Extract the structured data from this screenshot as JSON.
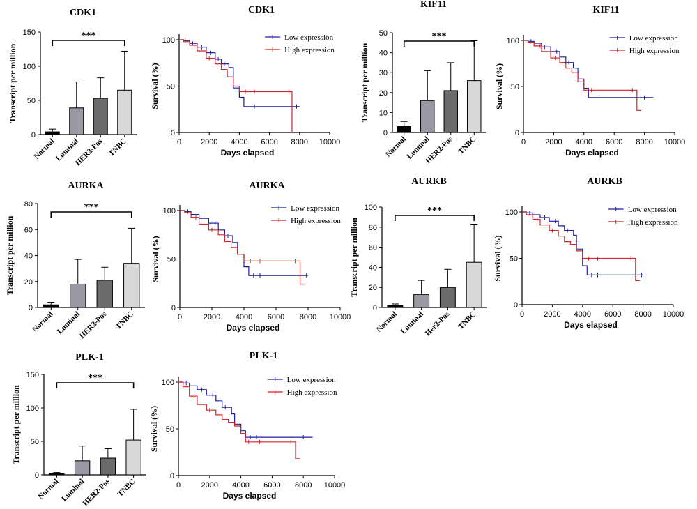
{
  "chart_data": [
    {
      "id": "cdk1-bar",
      "type": "bar",
      "title": "CDK1",
      "ylabel": "Transcript per million",
      "xlabel": "",
      "categories": [
        "Normal",
        "Luminal",
        "HER2-Pos",
        "TNBC"
      ],
      "values": [
        4,
        39,
        53,
        65
      ],
      "errors": [
        4,
        38,
        30,
        57
      ],
      "bar_colors": [
        "#000000",
        "#9a98a3",
        "#6b6b6b",
        "#d8d8d8"
      ],
      "ylim": [
        0,
        150
      ],
      "yticks": [
        0,
        50,
        100,
        150
      ],
      "significance": "***",
      "grid": false
    },
    {
      "id": "cdk1-km",
      "type": "line",
      "title": "CDK1",
      "xlabel": "Days elapsed",
      "ylabel": "Survival (%)",
      "xlim": [
        0,
        10000
      ],
      "ylim": [
        0,
        100
      ],
      "xticks": [
        0,
        2000,
        4000,
        6000,
        8000,
        10000
      ],
      "yticks": [
        0,
        50,
        100
      ],
      "legend_position": "top-right",
      "series": [
        {
          "name": "Low expression",
          "color": "#1f1fa0",
          "x": [
            0,
            300,
            700,
            1200,
            1800,
            2400,
            2800,
            3300,
            3600,
            4000,
            4300,
            8000
          ],
          "y": [
            100,
            99,
            96,
            92,
            86,
            79,
            74,
            70,
            48,
            38,
            28,
            28
          ],
          "censor_x": [
            400,
            900,
            1500,
            2100,
            2600,
            3000,
            5000,
            7800
          ]
        },
        {
          "name": "High expression",
          "color": "#d0262a",
          "x": [
            0,
            300,
            700,
            1200,
            1800,
            2400,
            2800,
            3200,
            3600,
            4000,
            7400,
            7500
          ],
          "y": [
            100,
            98,
            94,
            88,
            80,
            74,
            68,
            60,
            50,
            44,
            44,
            0
          ],
          "censor_x": [
            1000,
            2000,
            4400,
            5000,
            7300
          ]
        }
      ]
    },
    {
      "id": "kif11-bar",
      "type": "bar",
      "title": "KIF11",
      "ylabel": "Transcript per million",
      "xlabel": "",
      "categories": [
        "Normal",
        "Luminal",
        "HER2-Pos",
        "TNBC"
      ],
      "values": [
        3,
        16,
        21,
        26
      ],
      "errors": [
        2.5,
        15,
        14,
        20
      ],
      "bar_colors": [
        "#000000",
        "#9a98a3",
        "#6b6b6b",
        "#d8d8d8"
      ],
      "ylim": [
        0,
        50
      ],
      "yticks": [
        0,
        10,
        20,
        30,
        40,
        50
      ],
      "significance": "***",
      "grid": false
    },
    {
      "id": "kif11-km",
      "type": "line",
      "title": "KIF11",
      "xlabel": "Days elapsed",
      "ylabel": "Survival (%)",
      "xlim": [
        0,
        10000
      ],
      "ylim": [
        0,
        100
      ],
      "xticks": [
        0,
        2000,
        4000,
        6000,
        8000,
        10000
      ],
      "yticks": [
        0,
        50,
        100
      ],
      "legend_position": "top-right",
      "series": [
        {
          "name": "Low expression",
          "color": "#1f1fa0",
          "x": [
            0,
            300,
            700,
            1200,
            1800,
            2400,
            2800,
            3300,
            3600,
            4000,
            4300,
            8600
          ],
          "y": [
            100,
            99,
            97,
            93,
            88,
            82,
            76,
            70,
            58,
            48,
            38,
            38
          ],
          "censor_x": [
            500,
            1400,
            2200,
            3000,
            5000,
            8000
          ]
        },
        {
          "name": "High expression",
          "color": "#d0262a",
          "x": [
            0,
            300,
            700,
            1200,
            1800,
            2400,
            2800,
            3200,
            3600,
            4000,
            7400,
            7500,
            7800
          ],
          "y": [
            100,
            98,
            94,
            88,
            81,
            76,
            70,
            65,
            55,
            46,
            46,
            24,
            24
          ],
          "censor_x": [
            1100,
            2100,
            4500,
            7200
          ]
        }
      ]
    },
    {
      "id": "aurka-bar",
      "type": "bar",
      "title": "AURKA",
      "ylabel": "Transcript per million",
      "xlabel": "",
      "categories": [
        "Normal",
        "Luminal",
        "HER2-Pos",
        "TNBC"
      ],
      "values": [
        2,
        18,
        21,
        34
      ],
      "errors": [
        2,
        19,
        10,
        27
      ],
      "bar_colors": [
        "#000000",
        "#9a98a3",
        "#6b6b6b",
        "#d8d8d8"
      ],
      "ylim": [
        0,
        80
      ],
      "yticks": [
        0,
        20,
        40,
        60,
        80
      ],
      "significance": "***",
      "grid": false
    },
    {
      "id": "aurka-km",
      "type": "line",
      "title": "AURKA",
      "xlabel": "Days elapsed",
      "ylabel": "Survival (%)",
      "xlim": [
        0,
        10000
      ],
      "ylim": [
        0,
        100
      ],
      "xticks": [
        0,
        2000,
        4000,
        6000,
        8000,
        10000
      ],
      "yticks": [
        0,
        50,
        100
      ],
      "legend_position": "top-right",
      "series": [
        {
          "name": "Low expression",
          "color": "#1f1fa0",
          "x": [
            0,
            300,
            700,
            1200,
            1800,
            2400,
            2800,
            3300,
            3600,
            4000,
            4300,
            8000
          ],
          "y": [
            100,
            99,
            96,
            92,
            87,
            80,
            74,
            67,
            55,
            42,
            33,
            33
          ],
          "censor_x": [
            500,
            1500,
            2200,
            3000,
            4600,
            5000,
            7900
          ]
        },
        {
          "name": "High expression",
          "color": "#d0262a",
          "x": [
            0,
            300,
            700,
            1200,
            1800,
            2400,
            2800,
            3200,
            3600,
            4000,
            7400,
            7500,
            7800
          ],
          "y": [
            100,
            98,
            93,
            86,
            80,
            75,
            68,
            62,
            55,
            48,
            48,
            24,
            24
          ],
          "censor_x": [
            1000,
            2000,
            4400,
            5000,
            7200
          ]
        }
      ]
    },
    {
      "id": "aurkb-bar",
      "type": "bar",
      "title": "AURKB",
      "ylabel": "Transcript per million",
      "xlabel": "",
      "categories": [
        "Normal",
        "Luminal",
        "Her2-Pos",
        "TNBC"
      ],
      "values": [
        2,
        13,
        20,
        45
      ],
      "errors": [
        1.5,
        14,
        18,
        38
      ],
      "bar_colors": [
        "#000000",
        "#9a98a3",
        "#6b6b6b",
        "#d8d8d8"
      ],
      "ylim": [
        0,
        100
      ],
      "yticks": [
        0,
        20,
        40,
        60,
        80,
        100
      ],
      "significance": "***",
      "grid": false
    },
    {
      "id": "aurkb-km",
      "type": "line",
      "title": "AURKB",
      "xlabel": "Days elapsed",
      "ylabel": "Survival (%)",
      "xlim": [
        0,
        10000
      ],
      "ylim": [
        0,
        100
      ],
      "xticks": [
        0,
        2000,
        4000,
        6000,
        8000,
        10000
      ],
      "yticks": [
        0,
        50,
        100
      ],
      "legend_position": "top-right",
      "series": [
        {
          "name": "Low expression",
          "color": "#1f1fa0",
          "x": [
            0,
            300,
            700,
            1200,
            1800,
            2400,
            2800,
            3400,
            3600,
            4000,
            4300,
            8000
          ],
          "y": [
            100,
            99,
            97,
            94,
            90,
            85,
            80,
            75,
            60,
            42,
            32,
            32
          ],
          "censor_x": [
            500,
            1500,
            2200,
            3000,
            4600,
            5000,
            7900
          ]
        },
        {
          "name": "High expression",
          "color": "#d0262a",
          "x": [
            0,
            300,
            700,
            1200,
            1800,
            2400,
            2800,
            3200,
            3600,
            4000,
            7400,
            7500,
            7800
          ],
          "y": [
            100,
            97,
            92,
            86,
            80,
            74,
            68,
            65,
            58,
            50,
            50,
            26,
            26
          ],
          "censor_x": [
            1000,
            2000,
            4400,
            5000,
            7200
          ]
        }
      ]
    },
    {
      "id": "plk1-bar",
      "type": "bar",
      "title": "PLK-1",
      "ylabel": "Transcript per million",
      "xlabel": "",
      "categories": [
        "Normal",
        "Luminal",
        "HER2-Pos",
        "TNBC"
      ],
      "values": [
        2,
        21,
        25,
        52
      ],
      "errors": [
        1.5,
        22,
        14,
        46
      ],
      "bar_colors": [
        "#000000",
        "#9a98a3",
        "#6b6b6b",
        "#d8d8d8"
      ],
      "ylim": [
        0,
        150
      ],
      "yticks": [
        0,
        50,
        100,
        150
      ],
      "significance": "***",
      "grid": false
    },
    {
      "id": "plk1-km",
      "type": "line",
      "title": "PLK-1",
      "xlabel": "Days elapsed",
      "ylabel": "Survival (%)",
      "xlim": [
        0,
        10000
      ],
      "ylim": [
        0,
        100
      ],
      "xticks": [
        0,
        2000,
        4000,
        6000,
        8000,
        10000
      ],
      "yticks": [
        0,
        50,
        100
      ],
      "legend_position": "top-right",
      "series": [
        {
          "name": "Low expression",
          "color": "#1f1fa0",
          "x": [
            0,
            300,
            700,
            1200,
            1800,
            2400,
            2800,
            3400,
            3600,
            4000,
            4300,
            8600
          ],
          "y": [
            100,
            99,
            96,
            92,
            86,
            80,
            73,
            66,
            55,
            48,
            41,
            41
          ],
          "censor_x": [
            500,
            1500,
            2200,
            3000,
            4600,
            5000,
            8000
          ]
        },
        {
          "name": "High expression",
          "color": "#d0262a",
          "x": [
            0,
            300,
            700,
            1200,
            1800,
            2400,
            2800,
            3200,
            3600,
            4000,
            4300,
            7400,
            7500,
            7800
          ],
          "y": [
            100,
            95,
            85,
            76,
            70,
            65,
            60,
            57,
            53,
            45,
            36,
            36,
            18,
            18
          ],
          "censor_x": [
            1000,
            2000,
            4500,
            5200,
            7200
          ]
        }
      ]
    }
  ]
}
